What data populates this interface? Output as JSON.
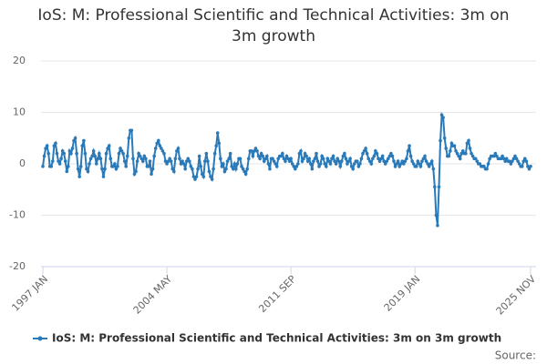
{
  "chart_data": {
    "type": "line",
    "title": "IoS: M: Professional Scientific and Technical Activities: 3m on 3m growth",
    "source": "Source:",
    "categories": [
      "1997 JAN",
      null,
      null,
      null,
      null,
      null,
      null,
      null,
      null,
      null,
      null,
      null,
      null,
      null,
      null,
      null,
      null,
      null,
      null,
      null,
      null,
      null,
      null,
      null,
      null,
      null,
      null,
      null,
      null,
      null,
      null,
      null,
      null,
      null,
      null,
      null,
      null,
      null,
      null,
      null,
      null,
      null,
      null,
      null,
      null,
      null,
      null,
      null,
      null,
      null,
      null,
      null,
      null,
      null,
      null,
      null,
      null,
      null,
      null,
      null,
      null,
      null,
      null,
      null,
      null,
      null,
      null,
      null,
      null,
      null,
      null,
      null,
      null,
      null,
      null,
      null,
      null,
      null,
      null,
      null,
      null,
      null,
      null,
      null,
      null,
      null,
      null,
      null,
      "2004 MAY",
      null,
      null,
      null,
      null,
      null,
      null,
      null,
      null,
      null,
      null,
      null,
      null,
      null,
      null,
      null,
      null,
      null,
      null,
      null,
      null,
      null,
      null,
      null,
      null,
      null,
      null,
      null,
      null,
      null,
      null,
      null,
      null,
      null,
      null,
      null,
      null,
      null,
      null,
      null,
      null,
      null,
      null,
      null,
      null,
      null,
      null,
      null,
      null,
      null,
      null,
      null,
      null,
      null,
      null,
      null,
      null,
      null,
      null,
      null,
      null,
      null,
      null,
      null,
      null,
      null,
      null,
      null,
      null,
      null,
      null,
      null,
      null,
      null,
      null,
      null,
      null,
      null,
      null,
      null,
      null,
      null,
      null,
      null,
      null,
      null,
      null,
      null,
      "2011 SEP",
      null,
      null,
      null,
      null,
      null,
      null,
      null,
      null,
      null,
      null,
      null,
      null,
      null,
      null,
      null,
      null,
      null,
      null,
      null,
      null,
      null,
      null,
      null,
      null,
      null,
      null,
      null,
      null,
      null,
      null,
      null,
      null,
      null,
      null,
      null,
      null,
      null,
      null,
      null,
      null,
      null,
      null,
      null,
      null,
      null,
      null,
      null,
      null,
      null,
      null,
      null,
      null,
      null,
      null,
      null,
      null,
      null,
      null,
      null,
      null,
      null,
      null,
      null,
      null,
      null,
      null,
      null,
      null,
      null,
      null,
      null,
      null,
      null,
      null,
      null,
      null,
      null,
      null,
      null,
      null,
      null,
      null,
      null,
      null,
      null,
      null,
      null,
      "2019 JAN",
      null,
      null,
      null,
      null,
      null,
      null,
      null,
      null,
      null,
      null,
      null,
      null,
      null,
      null,
      null,
      null,
      null,
      null,
      null,
      null,
      null,
      null,
      null,
      null,
      null,
      null,
      null,
      null,
      null,
      null,
      null,
      null,
      null,
      null,
      null,
      null,
      null,
      null,
      null,
      null,
      null,
      null,
      null,
      null,
      null,
      null,
      null,
      null,
      null,
      null,
      null,
      null,
      null,
      null,
      null,
      null,
      null,
      null,
      null,
      null,
      null,
      null,
      null,
      null,
      null,
      null,
      null,
      null,
      null,
      null,
      null,
      null,
      null,
      null,
      null,
      null,
      null,
      null,
      null,
      null,
      null,
      "2025 NOV"
    ],
    "series": [
      {
        "name": "IoS: M: Professional Scientific and Technical Activities: 3m on 3m growth",
        "color": "#2a7ab9",
        "values": [
          -0.5,
          1.5,
          3,
          3.5,
          2,
          -0.5,
          -0.5,
          0.5,
          3.5,
          4,
          2,
          0.5,
          0,
          1,
          2.5,
          2,
          0.5,
          -1.5,
          -0.5,
          2.5,
          2,
          3,
          4.5,
          5,
          2,
          -1,
          -2.5,
          -0.5,
          3.5,
          4.5,
          2,
          -1,
          -1.5,
          0,
          1,
          1.5,
          2.5,
          1.5,
          0,
          1,
          2,
          1,
          -1,
          -2.5,
          -1,
          2,
          3,
          3.5,
          1,
          -0.5,
          -0.5,
          0,
          -1,
          -0.5,
          2,
          3,
          2.5,
          2,
          0.5,
          -0.5,
          1.5,
          5,
          6.5,
          6.5,
          1,
          -2,
          -1.5,
          0.5,
          2,
          1.5,
          1,
          0.5,
          1.5,
          1,
          -0.5,
          -0.5,
          0.5,
          -2,
          -1,
          1.5,
          3,
          4,
          4.5,
          3.5,
          3,
          2.5,
          2,
          0.5,
          0,
          0.5,
          1,
          0.5,
          -1,
          -1.5,
          1,
          2.5,
          3,
          1,
          0,
          0.5,
          0,
          -1,
          0.5,
          1,
          0.5,
          -0.5,
          -1,
          -2.5,
          -3,
          -2.5,
          -1,
          1.5,
          -0.5,
          -2,
          -2.5,
          0.5,
          2,
          0.5,
          -1.5,
          -2.5,
          -3,
          -1,
          2,
          3.5,
          6,
          4,
          1,
          -0.5,
          0,
          -1.5,
          -1,
          0.5,
          1,
          2,
          -0.5,
          -1,
          0,
          -1,
          0,
          1,
          1,
          -0.5,
          -1,
          -1.5,
          -2,
          -1,
          1,
          2.5,
          2.5,
          1.5,
          2.5,
          3,
          2.5,
          1.5,
          1,
          2,
          1.5,
          0.5,
          1,
          1.5,
          0,
          -1,
          1,
          1,
          0.5,
          0,
          -0.5,
          1,
          1.5,
          1.5,
          2,
          1,
          0.5,
          1.5,
          1,
          0.5,
          1,
          0,
          -0.5,
          -1,
          -0.5,
          0,
          2,
          2.5,
          0.5,
          1,
          2,
          1.5,
          0.5,
          1,
          0,
          -1,
          0.5,
          1,
          2,
          0.5,
          -0.5,
          0,
          1.5,
          1,
          0,
          -0.5,
          1,
          0.5,
          0,
          1,
          1.5,
          0.5,
          0,
          1,
          0.5,
          -0.5,
          0.5,
          1.5,
          2,
          1,
          0,
          0.5,
          1,
          -0.5,
          -1,
          0,
          0.5,
          0.5,
          -0.5,
          0,
          1,
          2,
          2.5,
          3,
          2,
          1,
          0.5,
          0,
          1,
          1.5,
          2.5,
          2,
          1,
          0.5,
          1,
          1.5,
          0.5,
          0,
          0.5,
          1,
          1.5,
          2,
          1.5,
          0.5,
          -0.5,
          0,
          0.5,
          -0.5,
          0,
          0.5,
          0,
          0.5,
          1,
          2.5,
          3.5,
          1.5,
          0.5,
          0,
          -0.5,
          -0.5,
          0.5,
          0,
          -0.5,
          0.5,
          1,
          1.5,
          0.5,
          0,
          -0.5,
          0,
          0.5,
          -1,
          -4.5,
          -10,
          -12,
          -4.5,
          4.5,
          9.5,
          9,
          5,
          3,
          1.5,
          1.5,
          2.5,
          4,
          3.5,
          3.5,
          2.5,
          2,
          1.5,
          1,
          2,
          2.5,
          2,
          2,
          4,
          4.5,
          3,
          2,
          1.5,
          1,
          1,
          0.5,
          0,
          0,
          -0.5,
          -0.5,
          -0.5,
          -1,
          -1,
          0,
          1,
          1.5,
          1.5,
          1.5,
          2,
          1.5,
          1,
          1,
          1,
          1.5,
          1,
          0.5,
          1,
          0.5,
          0.5,
          0,
          0.5,
          1,
          1.5,
          1,
          0.5,
          0,
          -0.5,
          -0.5,
          0.5,
          1,
          0.5,
          -0.5,
          -1,
          -0.5
        ]
      }
    ],
    "ylim": [
      -20,
      20
    ],
    "yticks": [
      -20,
      -10,
      0,
      10,
      20
    ],
    "grid": true
  }
}
